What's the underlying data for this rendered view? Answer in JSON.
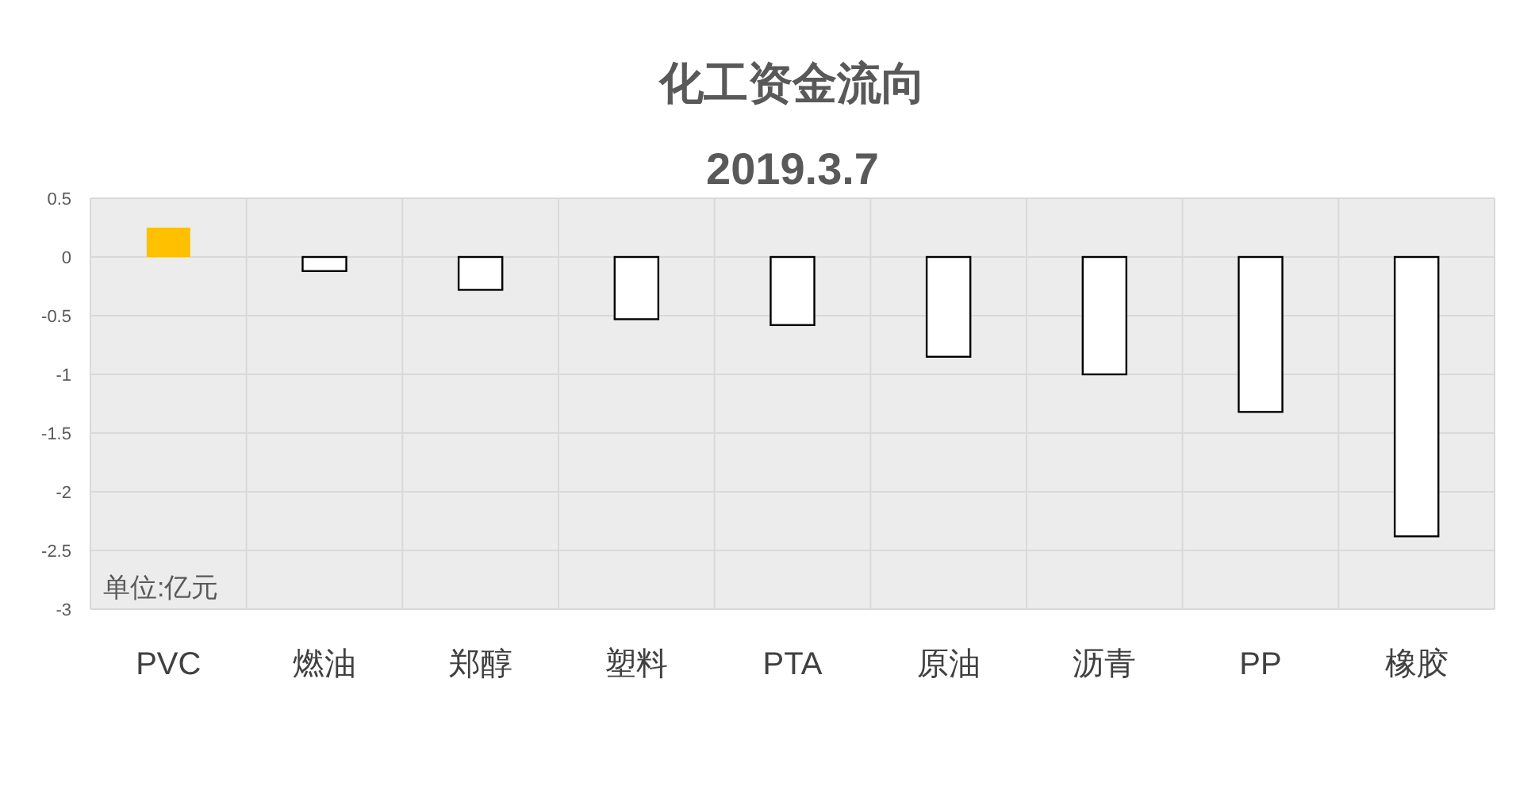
{
  "chart_data": {
    "type": "bar",
    "title": "化工资金流向",
    "subtitle": "2019.3.7",
    "categories": [
      "PVC",
      "燃油",
      "郑醇",
      "塑料",
      "PTA",
      "原油",
      "沥青",
      "PP",
      "橡胶"
    ],
    "values": [
      0.25,
      -0.12,
      -0.28,
      -0.53,
      -0.58,
      -0.85,
      -1.0,
      -1.32,
      -2.38
    ],
    "colors": [
      "#ffc000",
      "#ffffff",
      "#ffffff",
      "#ffffff",
      "#ffffff",
      "#ffffff",
      "#ffffff",
      "#ffffff",
      "#ffffff"
    ],
    "ylim": [
      -3,
      0.5
    ],
    "yticks": [
      0.5,
      0,
      -0.5,
      -1,
      -1.5,
      -2,
      -2.5,
      -3
    ],
    "grid": true,
    "annotations": [
      "单位:亿元"
    ]
  }
}
